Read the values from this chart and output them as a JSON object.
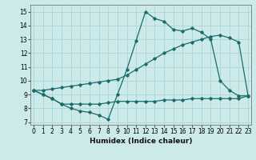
{
  "title": "",
  "xlabel": "Humidex (Indice chaleur)",
  "bg_color": "#cceaea",
  "grid_color": "#b0d8d8",
  "line_color": "#1a6b6b",
  "x_main": [
    0,
    1,
    2,
    3,
    4,
    5,
    6,
    7,
    8,
    9,
    10,
    11,
    12,
    13,
    14,
    15,
    16,
    17,
    18,
    19,
    20,
    21,
    22,
    23
  ],
  "y_main": [
    9.3,
    9.0,
    8.7,
    8.3,
    8.0,
    7.8,
    7.7,
    7.5,
    7.2,
    9.0,
    10.8,
    12.9,
    15.0,
    14.5,
    14.3,
    13.7,
    13.6,
    13.8,
    13.5,
    13.0,
    10.0,
    9.3,
    8.9,
    8.9
  ],
  "x_upper": [
    0,
    1,
    2,
    3,
    4,
    5,
    6,
    7,
    8,
    9,
    10,
    11,
    12,
    13,
    14,
    15,
    16,
    17,
    18,
    19,
    20,
    21,
    22,
    23
  ],
  "y_upper": [
    9.3,
    9.3,
    9.4,
    9.5,
    9.6,
    9.7,
    9.8,
    9.9,
    10.0,
    10.1,
    10.4,
    10.8,
    11.2,
    11.6,
    12.0,
    12.3,
    12.6,
    12.8,
    13.0,
    13.2,
    13.3,
    13.1,
    12.8,
    8.9
  ],
  "x_lower": [
    0,
    1,
    2,
    3,
    4,
    5,
    6,
    7,
    8,
    9,
    10,
    11,
    12,
    13,
    14,
    15,
    16,
    17,
    18,
    19,
    20,
    21,
    22,
    23
  ],
  "y_lower": [
    9.3,
    9.0,
    8.7,
    8.3,
    8.3,
    8.3,
    8.3,
    8.3,
    8.4,
    8.5,
    8.5,
    8.5,
    8.5,
    8.5,
    8.6,
    8.6,
    8.6,
    8.7,
    8.7,
    8.7,
    8.7,
    8.7,
    8.7,
    8.9
  ],
  "xlim": [
    -0.3,
    23.3
  ],
  "ylim": [
    6.8,
    15.5
  ],
  "yticks": [
    7,
    8,
    9,
    10,
    11,
    12,
    13,
    14,
    15
  ],
  "xticks": [
    0,
    1,
    2,
    3,
    4,
    5,
    6,
    7,
    8,
    9,
    10,
    11,
    12,
    13,
    14,
    15,
    16,
    17,
    18,
    19,
    20,
    21,
    22,
    23
  ],
  "tick_fontsize": 5.5,
  "xlabel_fontsize": 6.5
}
